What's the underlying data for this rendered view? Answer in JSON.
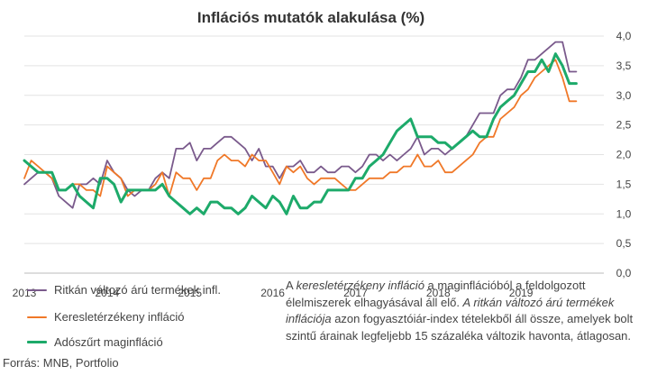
{
  "chart_data": {
    "type": "line",
    "title": "Inflációs mutatók alakulása (%)",
    "xlabel": "",
    "ylabel": "",
    "x_tick_labels": [
      "2013",
      "2014",
      "2015",
      "2016",
      "2017",
      "2018",
      "2019"
    ],
    "y_tick_labels": [
      "0,0",
      "0,5",
      "1,0",
      "1,5",
      "2,0",
      "2,5",
      "3,0",
      "3,5",
      "4,0"
    ],
    "ylim": [
      0,
      4
    ],
    "xlim": [
      2013.0,
      2020.0
    ],
    "grid": true,
    "legend_position": "bottom-left",
    "x": [
      2013.0,
      2013.083,
      2013.167,
      2013.25,
      2013.333,
      2013.417,
      2013.5,
      2013.583,
      2013.667,
      2013.75,
      2013.833,
      2013.917,
      2014.0,
      2014.083,
      2014.167,
      2014.25,
      2014.333,
      2014.417,
      2014.5,
      2014.583,
      2014.667,
      2014.75,
      2014.833,
      2014.917,
      2015.0,
      2015.083,
      2015.167,
      2015.25,
      2015.333,
      2015.417,
      2015.5,
      2015.583,
      2015.667,
      2015.75,
      2015.833,
      2015.917,
      2016.0,
      2016.083,
      2016.167,
      2016.25,
      2016.333,
      2016.417,
      2016.5,
      2016.583,
      2016.667,
      2016.75,
      2016.833,
      2016.917,
      2017.0,
      2017.083,
      2017.167,
      2017.25,
      2017.333,
      2017.417,
      2017.5,
      2017.583,
      2017.667,
      2017.75,
      2017.833,
      2017.917,
      2018.0,
      2018.083,
      2018.167,
      2018.25,
      2018.333,
      2018.417,
      2018.5,
      2018.583,
      2018.667,
      2018.75,
      2018.833,
      2018.917,
      2019.0,
      2019.083,
      2019.167,
      2019.25,
      2019.333,
      2019.417,
      2019.5,
      2019.583,
      2019.667
    ],
    "series": [
      {
        "name": "Ritkán változó árú termékek infl.",
        "color": "#7a5a8c",
        "values": [
          1.5,
          1.6,
          1.7,
          1.7,
          1.6,
          1.3,
          1.2,
          1.1,
          1.5,
          1.5,
          1.6,
          1.5,
          1.9,
          1.7,
          1.6,
          1.4,
          1.3,
          1.4,
          1.4,
          1.6,
          1.7,
          1.6,
          2.1,
          2.1,
          2.2,
          1.9,
          2.1,
          2.1,
          2.2,
          2.3,
          2.3,
          2.2,
          2.1,
          1.9,
          2.1,
          1.8,
          1.8,
          1.6,
          1.8,
          1.8,
          1.9,
          1.7,
          1.7,
          1.8,
          1.7,
          1.7,
          1.8,
          1.8,
          1.7,
          1.8,
          2.0,
          2.0,
          1.9,
          2.0,
          1.9,
          2.0,
          2.1,
          2.3,
          2.0,
          2.1,
          2.1,
          2.0,
          2.1,
          2.2,
          2.3,
          2.5,
          2.7,
          2.7,
          2.7,
          3.0,
          3.1,
          3.1,
          3.3,
          3.6,
          3.6,
          3.7,
          3.8,
          3.9,
          3.9,
          3.4,
          3.4
        ]
      },
      {
        "name": "Keresletérzékeny infláció",
        "color": "#f07828",
        "values": [
          1.6,
          1.9,
          1.8,
          1.7,
          1.6,
          1.4,
          1.4,
          1.5,
          1.5,
          1.4,
          1.4,
          1.3,
          1.8,
          1.7,
          1.6,
          1.3,
          1.4,
          1.4,
          1.4,
          1.5,
          1.7,
          1.3,
          1.7,
          1.6,
          1.6,
          1.4,
          1.6,
          1.6,
          1.9,
          2.0,
          1.9,
          1.9,
          1.8,
          2.0,
          1.9,
          1.9,
          1.7,
          1.5,
          1.8,
          1.7,
          1.8,
          1.6,
          1.5,
          1.6,
          1.6,
          1.6,
          1.5,
          1.4,
          1.4,
          1.5,
          1.6,
          1.6,
          1.6,
          1.7,
          1.7,
          1.8,
          1.8,
          2.0,
          1.8,
          1.8,
          1.9,
          1.7,
          1.7,
          1.8,
          1.9,
          2.0,
          2.2,
          2.3,
          2.3,
          2.6,
          2.7,
          2.8,
          3.0,
          3.1,
          3.3,
          3.4,
          3.5,
          3.6,
          3.3,
          2.9,
          2.9
        ]
      },
      {
        "name": "Adószűrt maginfláció",
        "color": "#1daa6a",
        "values": [
          1.9,
          1.8,
          1.7,
          1.7,
          1.7,
          1.4,
          1.4,
          1.5,
          1.3,
          1.2,
          1.1,
          1.6,
          1.6,
          1.5,
          1.2,
          1.4,
          1.4,
          1.4,
          1.4,
          1.4,
          1.5,
          1.3,
          1.2,
          1.1,
          1.0,
          1.1,
          1.0,
          1.2,
          1.2,
          1.1,
          1.1,
          1.0,
          1.1,
          1.3,
          1.2,
          1.1,
          1.3,
          1.2,
          1.0,
          1.3,
          1.1,
          1.1,
          1.2,
          1.2,
          1.4,
          1.4,
          1.4,
          1.4,
          1.6,
          1.6,
          1.8,
          1.9,
          2.0,
          2.2,
          2.4,
          2.5,
          2.6,
          2.3,
          2.3,
          2.3,
          2.2,
          2.2,
          2.1,
          2.2,
          2.3,
          2.4,
          2.3,
          2.3,
          2.6,
          2.8,
          2.9,
          3.0,
          3.2,
          3.4,
          3.4,
          3.6,
          3.4,
          3.7,
          3.5,
          3.2,
          3.2
        ]
      }
    ]
  },
  "note": {
    "segments": [
      {
        "text": "A ",
        "italic": false
      },
      {
        "text": "keresletérzékeny infláció",
        "italic": true
      },
      {
        "text": " a maginflációból a feldolgozott élelmiszerek elhagyásával áll elő. ",
        "italic": false
      },
      {
        "text": "A ritkán változó árú termékek inflációja",
        "italic": true
      },
      {
        "text": " azon fogyasztóiár-index tételekből áll össze, amelyek bolt szintű árainak legfeljebb 15 százaléka változik havonta, átlagosan.",
        "italic": false
      }
    ]
  },
  "source": "Forrás: MNB, Portfolio"
}
